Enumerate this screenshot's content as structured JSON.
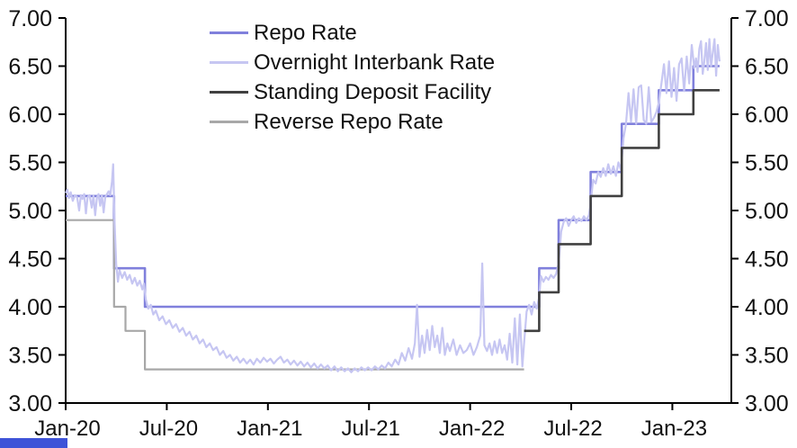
{
  "branding": {
    "bar_color": "#3E53D8"
  },
  "colors": {
    "axis": "#000000",
    "background": "#FFFFFF",
    "text": "#111111"
  },
  "chart_data": {
    "type": "line",
    "title": "",
    "xlabel": "",
    "ylabel": "",
    "grid": false,
    "legend_position": "top-center",
    "x_axis": {
      "tick_labels": [
        "Jan-20",
        "Jul-20",
        "Jan-21",
        "Jul-21",
        "Jan-22",
        "Jul-22",
        "Jan-23"
      ],
      "tick_months": [
        0,
        6,
        12,
        18,
        24,
        30,
        36
      ],
      "domain_months": [
        0,
        39.5
      ]
    },
    "y_axis": {
      "min": 3.0,
      "max": 7.0,
      "step": 0.5,
      "tick_labels": [
        "3.00",
        "3.50",
        "4.00",
        "4.50",
        "5.00",
        "5.50",
        "6.00",
        "6.50",
        "7.00"
      ],
      "sides": [
        "left",
        "right"
      ]
    },
    "series": [
      {
        "name": "Repo Rate",
        "color": "#8080DC",
        "width": 2.6,
        "points": [
          [
            0,
            5.15
          ],
          [
            2.87,
            5.15
          ],
          [
            2.87,
            4.4
          ],
          [
            4.7,
            4.4
          ],
          [
            4.7,
            4.0
          ],
          [
            28.1,
            4.0
          ],
          [
            28.1,
            4.4
          ],
          [
            29.25,
            4.4
          ],
          [
            29.25,
            4.9
          ],
          [
            31.15,
            4.9
          ],
          [
            31.15,
            5.4
          ],
          [
            33.0,
            5.4
          ],
          [
            33.0,
            5.9
          ],
          [
            35.2,
            5.9
          ],
          [
            35.2,
            6.25
          ],
          [
            37.25,
            6.25
          ],
          [
            37.25,
            6.5
          ],
          [
            38.8,
            6.5
          ]
        ]
      },
      {
        "name": "Overnight Interbank Rate",
        "color": "#C6C6F2",
        "width": 2.2,
        "points": [
          [
            0,
            5.18
          ],
          [
            0.1,
            5.22
          ],
          [
            0.2,
            5.13
          ],
          [
            0.3,
            5.19
          ],
          [
            0.42,
            5.1
          ],
          [
            0.55,
            5.16
          ],
          [
            0.68,
            5.14
          ],
          [
            0.8,
            5.0
          ],
          [
            0.9,
            5.16
          ],
          [
            1.0,
            5.12
          ],
          [
            1.1,
            5.17
          ],
          [
            1.2,
            4.97
          ],
          [
            1.3,
            5.14
          ],
          [
            1.42,
            5.16
          ],
          [
            1.55,
            5.03
          ],
          [
            1.65,
            5.15
          ],
          [
            1.75,
            4.95
          ],
          [
            1.85,
            5.13
          ],
          [
            1.95,
            5.17
          ],
          [
            2.05,
            5.05
          ],
          [
            2.15,
            5.16
          ],
          [
            2.25,
            4.98
          ],
          [
            2.35,
            5.14
          ],
          [
            2.45,
            5.17
          ],
          [
            2.55,
            5.2
          ],
          [
            2.65,
            5.16
          ],
          [
            2.75,
            5.3
          ],
          [
            2.82,
            5.48
          ],
          [
            2.9,
            4.9
          ],
          [
            3.0,
            4.44
          ],
          [
            3.1,
            4.26
          ],
          [
            3.2,
            4.38
          ],
          [
            3.35,
            4.3
          ],
          [
            3.5,
            4.36
          ],
          [
            3.65,
            4.28
          ],
          [
            3.8,
            4.33
          ],
          [
            3.95,
            4.24
          ],
          [
            4.1,
            4.3
          ],
          [
            4.25,
            4.22
          ],
          [
            4.4,
            4.27
          ],
          [
            4.55,
            4.18
          ],
          [
            4.65,
            4.24
          ],
          [
            4.75,
            4.08
          ],
          [
            4.9,
            3.98
          ],
          [
            5.05,
            4.02
          ],
          [
            5.2,
            3.92
          ],
          [
            5.35,
            3.96
          ],
          [
            5.55,
            3.86
          ],
          [
            5.75,
            3.9
          ],
          [
            5.95,
            3.82
          ],
          [
            6.15,
            3.86
          ],
          [
            6.35,
            3.78
          ],
          [
            6.55,
            3.82
          ],
          [
            6.75,
            3.74
          ],
          [
            6.95,
            3.78
          ],
          [
            7.15,
            3.7
          ],
          [
            7.35,
            3.74
          ],
          [
            7.55,
            3.66
          ],
          [
            7.75,
            3.7
          ],
          [
            7.95,
            3.62
          ],
          [
            8.15,
            3.66
          ],
          [
            8.35,
            3.58
          ],
          [
            8.55,
            3.62
          ],
          [
            8.75,
            3.55
          ],
          [
            8.95,
            3.58
          ],
          [
            9.15,
            3.5
          ],
          [
            9.35,
            3.54
          ],
          [
            9.55,
            3.47
          ],
          [
            9.75,
            3.5
          ],
          [
            9.95,
            3.44
          ],
          [
            10.15,
            3.48
          ],
          [
            10.35,
            3.42
          ],
          [
            10.55,
            3.46
          ],
          [
            10.75,
            3.41
          ],
          [
            10.95,
            3.45
          ],
          [
            11.15,
            3.4
          ],
          [
            11.35,
            3.46
          ],
          [
            11.55,
            3.42
          ],
          [
            11.75,
            3.47
          ],
          [
            11.95,
            3.43
          ],
          [
            12.15,
            3.46
          ],
          [
            12.35,
            3.41
          ],
          [
            12.55,
            3.45
          ],
          [
            12.75,
            3.48
          ],
          [
            12.95,
            3.42
          ],
          [
            13.15,
            3.45
          ],
          [
            13.35,
            3.4
          ],
          [
            13.55,
            3.44
          ],
          [
            13.75,
            3.39
          ],
          [
            13.95,
            3.43
          ],
          [
            14.15,
            3.38
          ],
          [
            14.35,
            3.42
          ],
          [
            14.55,
            3.37
          ],
          [
            14.75,
            3.41
          ],
          [
            14.95,
            3.36
          ],
          [
            15.15,
            3.4
          ],
          [
            15.35,
            3.36
          ],
          [
            15.55,
            3.39
          ],
          [
            15.75,
            3.34
          ],
          [
            15.95,
            3.38
          ],
          [
            16.15,
            3.33
          ],
          [
            16.35,
            3.37
          ],
          [
            16.55,
            3.33
          ],
          [
            16.75,
            3.36
          ],
          [
            16.95,
            3.32
          ],
          [
            17.15,
            3.36
          ],
          [
            17.35,
            3.33
          ],
          [
            17.55,
            3.37
          ],
          [
            17.75,
            3.34
          ],
          [
            17.95,
            3.37
          ],
          [
            18.15,
            3.34
          ],
          [
            18.35,
            3.38
          ],
          [
            18.55,
            3.35
          ],
          [
            18.75,
            3.39
          ],
          [
            18.95,
            3.36
          ],
          [
            19.15,
            3.42
          ],
          [
            19.35,
            3.38
          ],
          [
            19.55,
            3.45
          ],
          [
            19.75,
            3.4
          ],
          [
            19.95,
            3.52
          ],
          [
            20.15,
            3.44
          ],
          [
            20.35,
            3.57
          ],
          [
            20.55,
            3.46
          ],
          [
            20.72,
            3.62
          ],
          [
            20.85,
            4.02
          ],
          [
            21.0,
            3.48
          ],
          [
            21.15,
            3.7
          ],
          [
            21.3,
            3.52
          ],
          [
            21.45,
            3.76
          ],
          [
            21.6,
            3.55
          ],
          [
            21.75,
            3.8
          ],
          [
            21.9,
            3.58
          ],
          [
            22.05,
            3.7
          ],
          [
            22.2,
            3.52
          ],
          [
            22.35,
            3.78
          ],
          [
            22.5,
            3.5
          ],
          [
            22.65,
            3.62
          ],
          [
            22.8,
            3.54
          ],
          [
            23.0,
            3.66
          ],
          [
            23.2,
            3.5
          ],
          [
            23.4,
            3.6
          ],
          [
            23.6,
            3.52
          ],
          [
            23.8,
            3.55
          ],
          [
            24.0,
            3.62
          ],
          [
            24.2,
            3.5
          ],
          [
            24.4,
            3.58
          ],
          [
            24.6,
            3.7
          ],
          [
            24.72,
            4.45
          ],
          [
            24.85,
            3.6
          ],
          [
            25.0,
            3.54
          ],
          [
            25.15,
            3.62
          ],
          [
            25.3,
            3.5
          ],
          [
            25.45,
            3.64
          ],
          [
            25.6,
            3.52
          ],
          [
            25.75,
            3.66
          ],
          [
            25.9,
            3.52
          ],
          [
            26.05,
            3.6
          ],
          [
            26.2,
            3.45
          ],
          [
            26.35,
            3.72
          ],
          [
            26.5,
            3.42
          ],
          [
            26.65,
            3.88
          ],
          [
            26.8,
            3.4
          ],
          [
            26.95,
            3.92
          ],
          [
            27.1,
            3.38
          ],
          [
            27.2,
            3.62
          ],
          [
            27.35,
            3.95
          ],
          [
            27.5,
            4.02
          ],
          [
            27.65,
            3.92
          ],
          [
            27.8,
            4.05
          ],
          [
            27.95,
            3.98
          ],
          [
            28.1,
            4.1
          ],
          [
            28.2,
            4.32
          ],
          [
            28.35,
            4.26
          ],
          [
            28.5,
            4.31
          ],
          [
            28.65,
            4.28
          ],
          [
            28.8,
            4.33
          ],
          [
            28.95,
            4.3
          ],
          [
            29.1,
            4.34
          ],
          [
            29.25,
            4.45
          ],
          [
            29.4,
            4.78
          ],
          [
            29.55,
            4.88
          ],
          [
            29.7,
            4.92
          ],
          [
            29.85,
            4.84
          ],
          [
            30.0,
            4.9
          ],
          [
            30.15,
            4.94
          ],
          [
            30.3,
            4.87
          ],
          [
            30.45,
            4.92
          ],
          [
            30.6,
            4.89
          ],
          [
            30.75,
            4.94
          ],
          [
            30.9,
            4.9
          ],
          [
            31.05,
            4.95
          ],
          [
            31.15,
            5.08
          ],
          [
            31.3,
            5.32
          ],
          [
            31.45,
            5.28
          ],
          [
            31.6,
            5.4
          ],
          [
            31.75,
            5.35
          ],
          [
            31.9,
            5.44
          ],
          [
            32.05,
            5.36
          ],
          [
            32.2,
            5.48
          ],
          [
            32.35,
            5.38
          ],
          [
            32.5,
            5.46
          ],
          [
            32.65,
            5.36
          ],
          [
            32.8,
            5.5
          ],
          [
            32.95,
            5.42
          ],
          [
            33.1,
            5.75
          ],
          [
            33.25,
            5.9
          ],
          [
            33.4,
            6.22
          ],
          [
            33.55,
            5.92
          ],
          [
            33.7,
            6.26
          ],
          [
            33.85,
            5.9
          ],
          [
            34.0,
            6.28
          ],
          [
            34.15,
            6.3
          ],
          [
            34.3,
            5.94
          ],
          [
            34.45,
            5.9
          ],
          [
            34.6,
            6.28
          ],
          [
            34.75,
            5.92
          ],
          [
            34.9,
            5.96
          ],
          [
            35.05,
            6.02
          ],
          [
            35.2,
            6.12
          ],
          [
            35.35,
            6.32
          ],
          [
            35.5,
            6.52
          ],
          [
            35.65,
            6.22
          ],
          [
            35.8,
            6.55
          ],
          [
            35.95,
            6.18
          ],
          [
            36.1,
            6.48
          ],
          [
            36.25,
            6.14
          ],
          [
            36.4,
            6.52
          ],
          [
            36.55,
            6.58
          ],
          [
            36.7,
            6.24
          ],
          [
            36.85,
            6.6
          ],
          [
            37.0,
            6.32
          ],
          [
            37.15,
            6.72
          ],
          [
            37.3,
            6.48
          ],
          [
            37.4,
            6.58
          ],
          [
            37.5,
            6.44
          ],
          [
            37.6,
            6.68
          ],
          [
            37.7,
            6.76
          ],
          [
            37.8,
            6.42
          ],
          [
            37.9,
            6.55
          ],
          [
            38.0,
            6.74
          ],
          [
            38.1,
            6.46
          ],
          [
            38.2,
            6.78
          ],
          [
            38.3,
            6.5
          ],
          [
            38.4,
            6.64
          ],
          [
            38.5,
            6.78
          ],
          [
            38.6,
            6.4
          ],
          [
            38.7,
            6.72
          ],
          [
            38.8,
            6.55
          ]
        ]
      },
      {
        "name": "Standing Deposit Facility",
        "color": "#404040",
        "width": 2.6,
        "points": [
          [
            27.2,
            3.75
          ],
          [
            28.1,
            3.75
          ],
          [
            28.1,
            4.15
          ],
          [
            29.25,
            4.15
          ],
          [
            29.25,
            4.65
          ],
          [
            31.15,
            4.65
          ],
          [
            31.15,
            5.15
          ],
          [
            33.0,
            5.15
          ],
          [
            33.0,
            5.65
          ],
          [
            35.2,
            5.65
          ],
          [
            35.2,
            6.0
          ],
          [
            37.25,
            6.0
          ],
          [
            37.25,
            6.25
          ],
          [
            38.8,
            6.25
          ]
        ]
      },
      {
        "name": "Reverse Repo Rate",
        "color": "#A8A8A8",
        "width": 2.2,
        "points": [
          [
            0,
            4.9
          ],
          [
            2.87,
            4.9
          ],
          [
            2.87,
            4.0
          ],
          [
            3.55,
            4.0
          ],
          [
            3.55,
            3.75
          ],
          [
            4.7,
            3.75
          ],
          [
            4.7,
            3.35
          ],
          [
            27.2,
            3.35
          ]
        ]
      }
    ]
  }
}
